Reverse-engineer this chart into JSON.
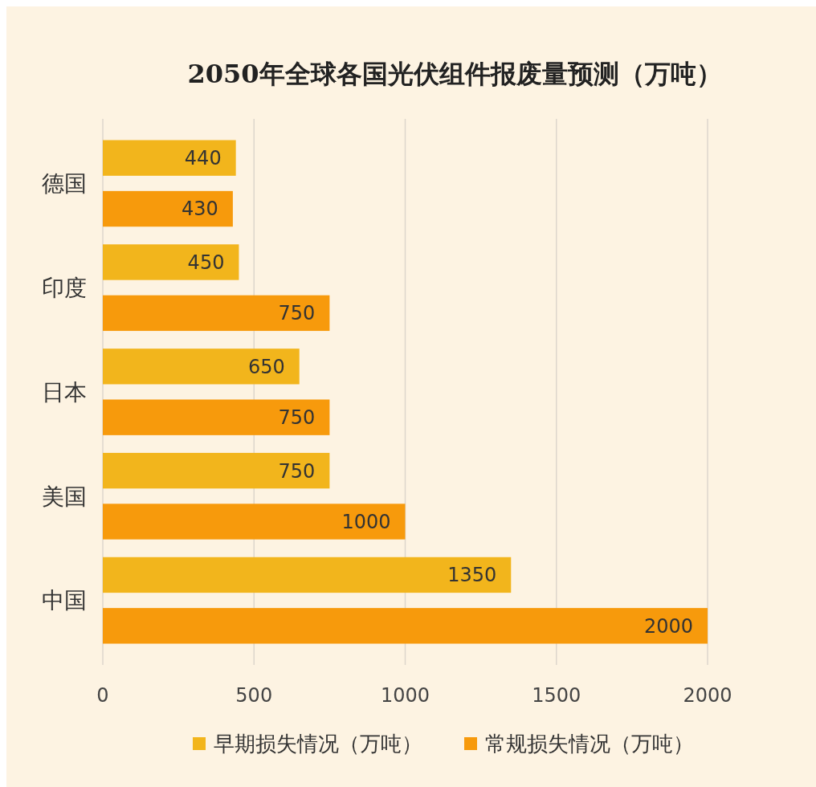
{
  "chart_data": {
    "type": "bar",
    "orientation": "horizontal",
    "title": "2050年全球各国光伏组件报废量预测（万吨）",
    "categories": [
      "德国",
      "印度",
      "日本",
      "美国",
      "中国"
    ],
    "series": [
      {
        "name": "早期损失情况（万吨）",
        "color": "#f2b51c",
        "values": [
          440,
          450,
          650,
          750,
          1350
        ]
      },
      {
        "name": "常规损失情况（万吨）",
        "color": "#f79a0c",
        "values": [
          430,
          750,
          750,
          1000,
          2000
        ]
      }
    ],
    "xlim": [
      0,
      2000
    ],
    "xticks": [
      0,
      500,
      1000,
      1500,
      2000
    ],
    "grid": "x",
    "legend": "bottom",
    "data_labels": true
  }
}
